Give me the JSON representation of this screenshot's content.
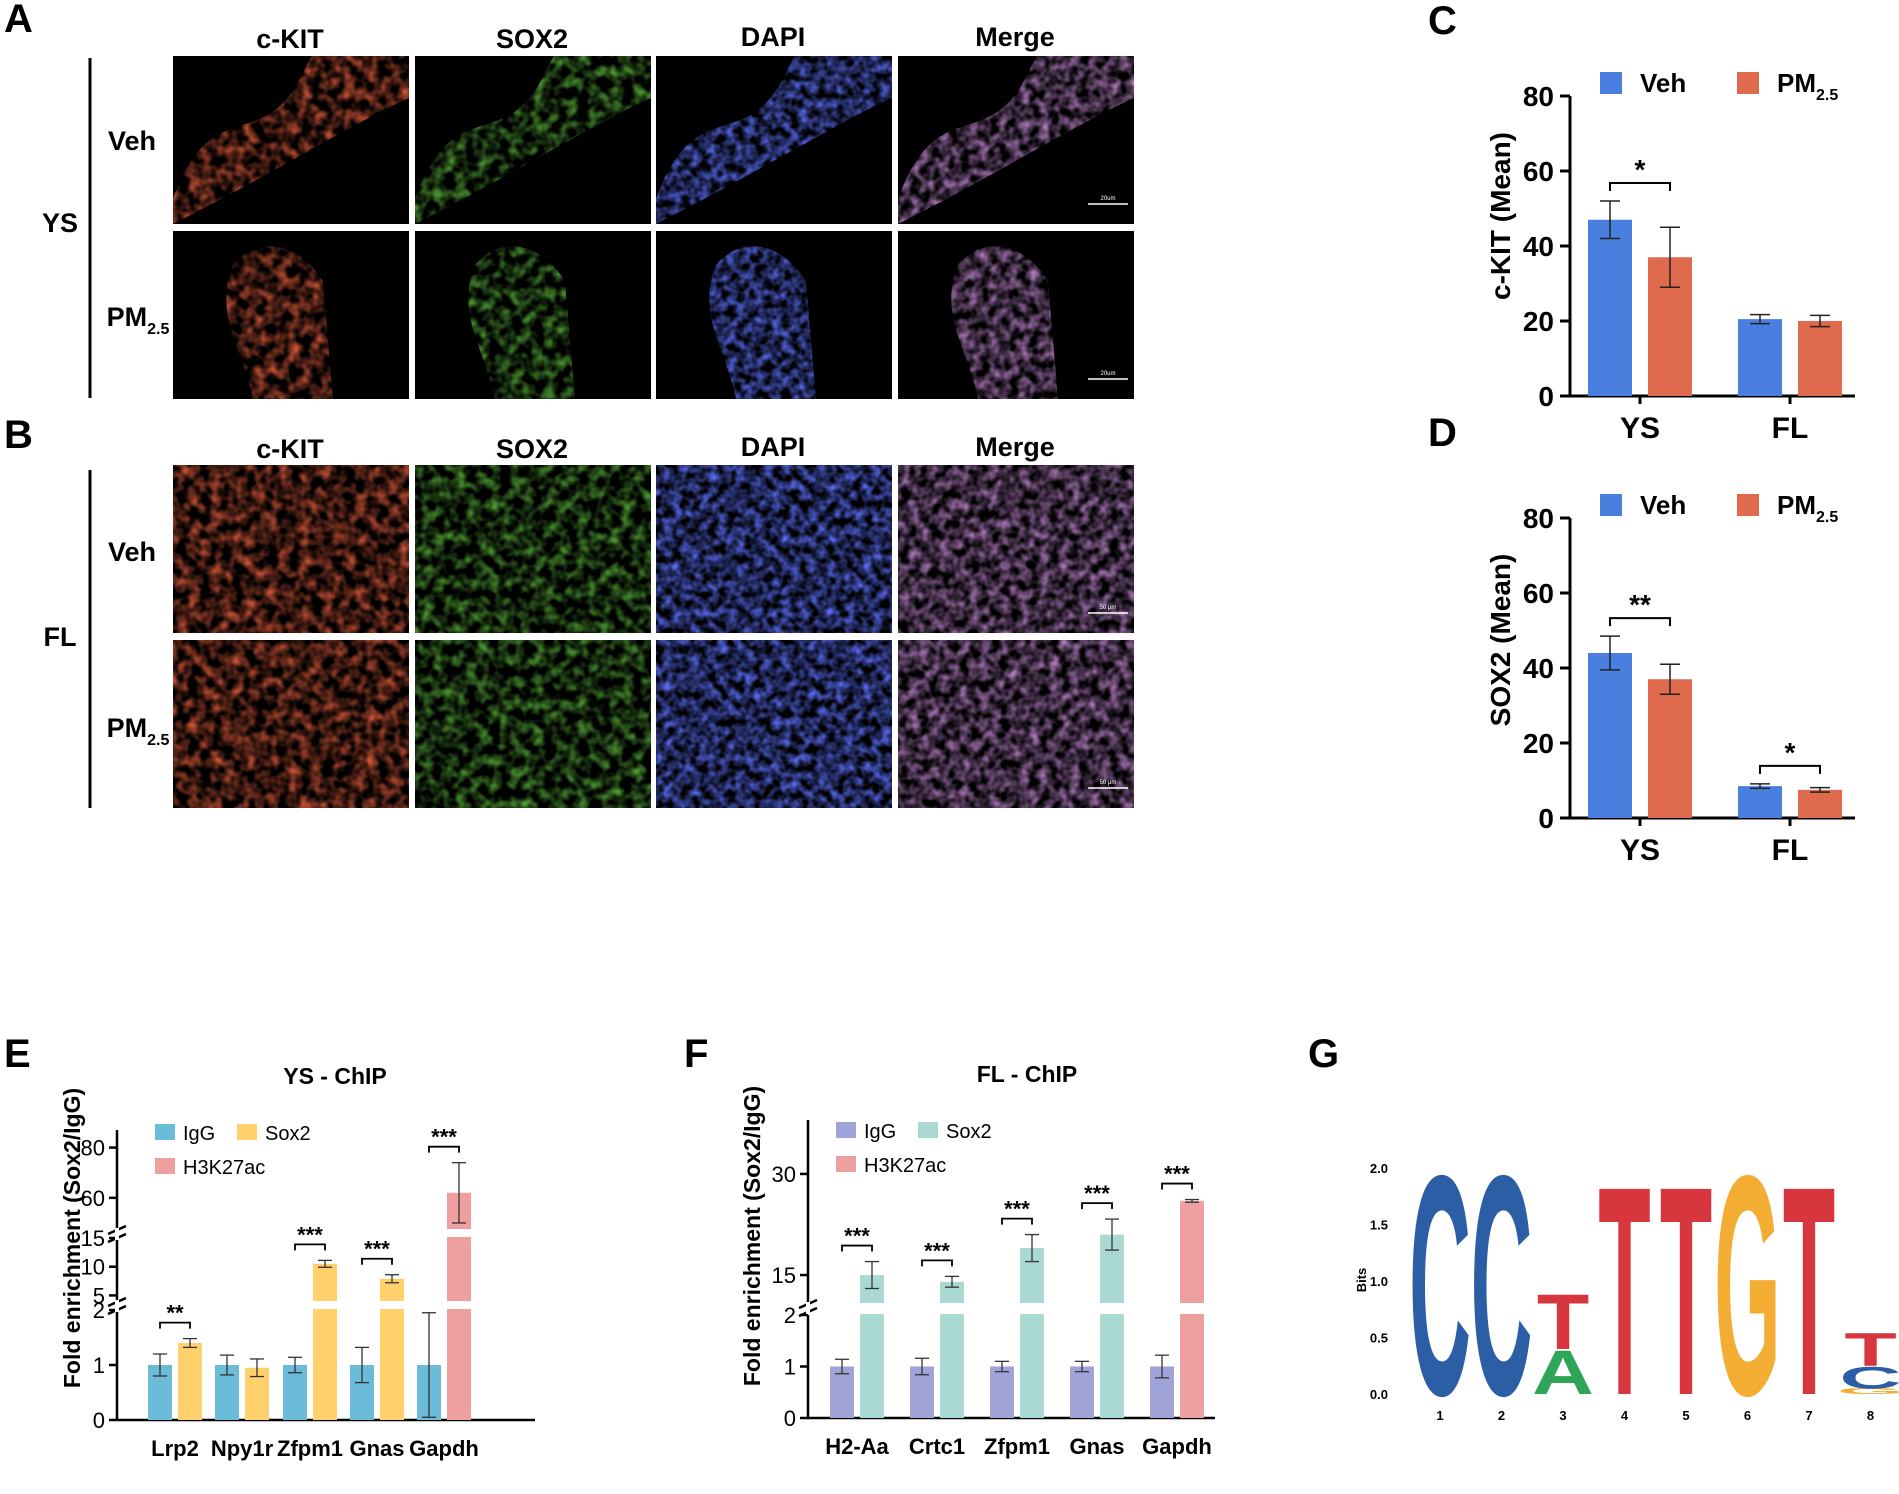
{
  "colors": {
    "veh": "#4a7fe0",
    "pm": "#e06a4e",
    "igg_e": "#6bbcd8",
    "sox2_e": "#ffd06b",
    "h3k_e": "#eea0a0",
    "igg_f": "#9fa3d8",
    "sox2_f": "#a9d9d2",
    "h3k_f": "#eea0a0",
    "logo_c": "#2c5ea6",
    "logo_t": "#d7363f",
    "logo_a": "#2fa55a",
    "logo_g": "#f4ad33"
  },
  "panels": {
    "a": "A",
    "b": "B",
    "c": "C",
    "d": "D",
    "e": "E",
    "f": "F",
    "g": "G"
  },
  "micro": {
    "columns": [
      "c-KIT",
      "SOX2",
      "DAPI",
      "Merge"
    ],
    "ys_group": "YS",
    "fl_group": "FL",
    "row_veh": "Veh",
    "row_pm": "PM",
    "row_pm_sub": "2.5",
    "scale_ys": "20um",
    "scale_fl": "50 μm"
  },
  "chart_c": {
    "type": "bar",
    "ylabel": "c-KIT (Mean)",
    "yticks": [
      "0",
      "20",
      "40",
      "60",
      "80"
    ],
    "ylim": [
      0,
      80
    ],
    "categories": [
      "YS",
      "FL"
    ],
    "legend": {
      "veh": "Veh",
      "pm": "PM",
      "pm_sub": "2.5"
    },
    "series": [
      {
        "name": "Veh",
        "values": [
          47,
          20.5
        ],
        "errors": [
          5,
          1.2
        ]
      },
      {
        "name": "PM2.5",
        "values": [
          37,
          20
        ],
        "errors": [
          8,
          1.5
        ]
      }
    ],
    "significance": [
      {
        "category": "YS",
        "label": "*"
      }
    ]
  },
  "chart_d": {
    "type": "bar",
    "ylabel": "SOX2 (Mean)",
    "yticks": [
      "0",
      "20",
      "40",
      "60",
      "80"
    ],
    "ylim": [
      0,
      80
    ],
    "categories": [
      "YS",
      "FL"
    ],
    "legend": {
      "veh": "Veh",
      "pm": "PM",
      "pm_sub": "2.5"
    },
    "series": [
      {
        "name": "Veh",
        "values": [
          44,
          8.5
        ],
        "errors": [
          4.5,
          0.6
        ]
      },
      {
        "name": "PM2.5",
        "values": [
          37,
          7.5
        ],
        "errors": [
          4,
          0.6
        ]
      }
    ],
    "significance": [
      {
        "category": "YS",
        "label": "**"
      },
      {
        "category": "FL",
        "label": "*"
      }
    ]
  },
  "chart_e": {
    "type": "bar",
    "title": "YS - ChIP",
    "ylabel": "Fold enrichment (Sox2/IgG)",
    "categories": [
      "Lrp2",
      "Npy1r",
      "Zfpm1",
      "Gnas",
      "Gapdh"
    ],
    "legend": {
      "igg": "IgG",
      "sox2": "Sox2",
      "h3k": "H3K27ac"
    },
    "yticks_low": [
      "0",
      "1",
      "2"
    ],
    "yticks_mid": [
      "5",
      "10",
      "15"
    ],
    "yticks_high": [
      "60",
      "80"
    ],
    "igg": {
      "values": [
        1,
        1,
        1,
        1,
        1
      ],
      "errors": [
        0.2,
        0.18,
        0.14,
        0.32,
        0.95
      ]
    },
    "enriched": [
      {
        "series": "Sox2",
        "value": 1.4,
        "error": 0.08,
        "sig": "**"
      },
      {
        "series": "Sox2",
        "value": 0.95,
        "error": 0.16,
        "sig": ""
      },
      {
        "series": "Sox2",
        "value": 10.5,
        "error": 0.6,
        "sig": "***"
      },
      {
        "series": "Sox2",
        "value": 7.9,
        "error": 0.7,
        "sig": "***"
      },
      {
        "series": "H3K27ac",
        "value": 62,
        "error": 12,
        "sig": "***"
      }
    ]
  },
  "chart_f": {
    "type": "bar",
    "title": "FL - ChIP",
    "ylabel": "Fold enrichment (Sox2/IgG)",
    "categories": [
      "H2-Aa",
      "Crtc1",
      "Zfpm1",
      "Gnas",
      "Gapdh"
    ],
    "legend": {
      "igg": "IgG",
      "sox2": "Sox2",
      "h3k": "H3K27ac"
    },
    "yticks_low": [
      "0",
      "1",
      "2"
    ],
    "yticks_high": [
      "15",
      "30"
    ],
    "igg": {
      "values": [
        1,
        1,
        1,
        1,
        1
      ],
      "errors": [
        0.14,
        0.16,
        0.1,
        0.1,
        0.22
      ]
    },
    "enriched": [
      {
        "series": "Sox2",
        "value": 15,
        "error": 2
      },
      {
        "series": "Sox2",
        "value": 14,
        "error": 0.8
      },
      {
        "series": "Sox2",
        "value": 19,
        "error": 2
      },
      {
        "series": "Sox2",
        "value": 21,
        "error": 2.3
      },
      {
        "series": "H3K27ac",
        "value": 26,
        "error": 0.2
      }
    ],
    "sig": [
      "***",
      "***",
      "***",
      "***",
      "***"
    ]
  },
  "logo": {
    "ylabel": "Bits",
    "yticks": [
      "0.0",
      "0.5",
      "1.0",
      "1.5",
      "2.0"
    ],
    "positions": [
      "1",
      "2",
      "3",
      "4",
      "5",
      "6",
      "7",
      "8"
    ],
    "letters": [
      {
        "pos": 1,
        "char": "C",
        "bits": 2.0,
        "color": "logo_c",
        "base": 0
      },
      {
        "pos": 2,
        "char": "C",
        "bits": 2.0,
        "color": "logo_c",
        "base": 0
      },
      {
        "pos": 3,
        "char": "A",
        "bits": 0.4,
        "color": "logo_a",
        "base": 0
      },
      {
        "pos": 3,
        "char": "T",
        "bits": 0.5,
        "color": "logo_t",
        "base": 0.4
      },
      {
        "pos": 4,
        "char": "T",
        "bits": 1.9,
        "color": "logo_t",
        "base": 0
      },
      {
        "pos": 5,
        "char": "T",
        "bits": 1.9,
        "color": "logo_t",
        "base": 0
      },
      {
        "pos": 6,
        "char": "G",
        "bits": 2.0,
        "color": "logo_g",
        "base": 0
      },
      {
        "pos": 7,
        "char": "T",
        "bits": 1.9,
        "color": "logo_t",
        "base": 0
      },
      {
        "pos": 8,
        "char": "G",
        "bits": 0.05,
        "color": "logo_g",
        "base": 0
      },
      {
        "pos": 8,
        "char": "C",
        "bits": 0.2,
        "color": "logo_c",
        "base": 0.05
      },
      {
        "pos": 8,
        "char": "T",
        "bits": 0.3,
        "color": "logo_t",
        "base": 0.25
      }
    ]
  }
}
